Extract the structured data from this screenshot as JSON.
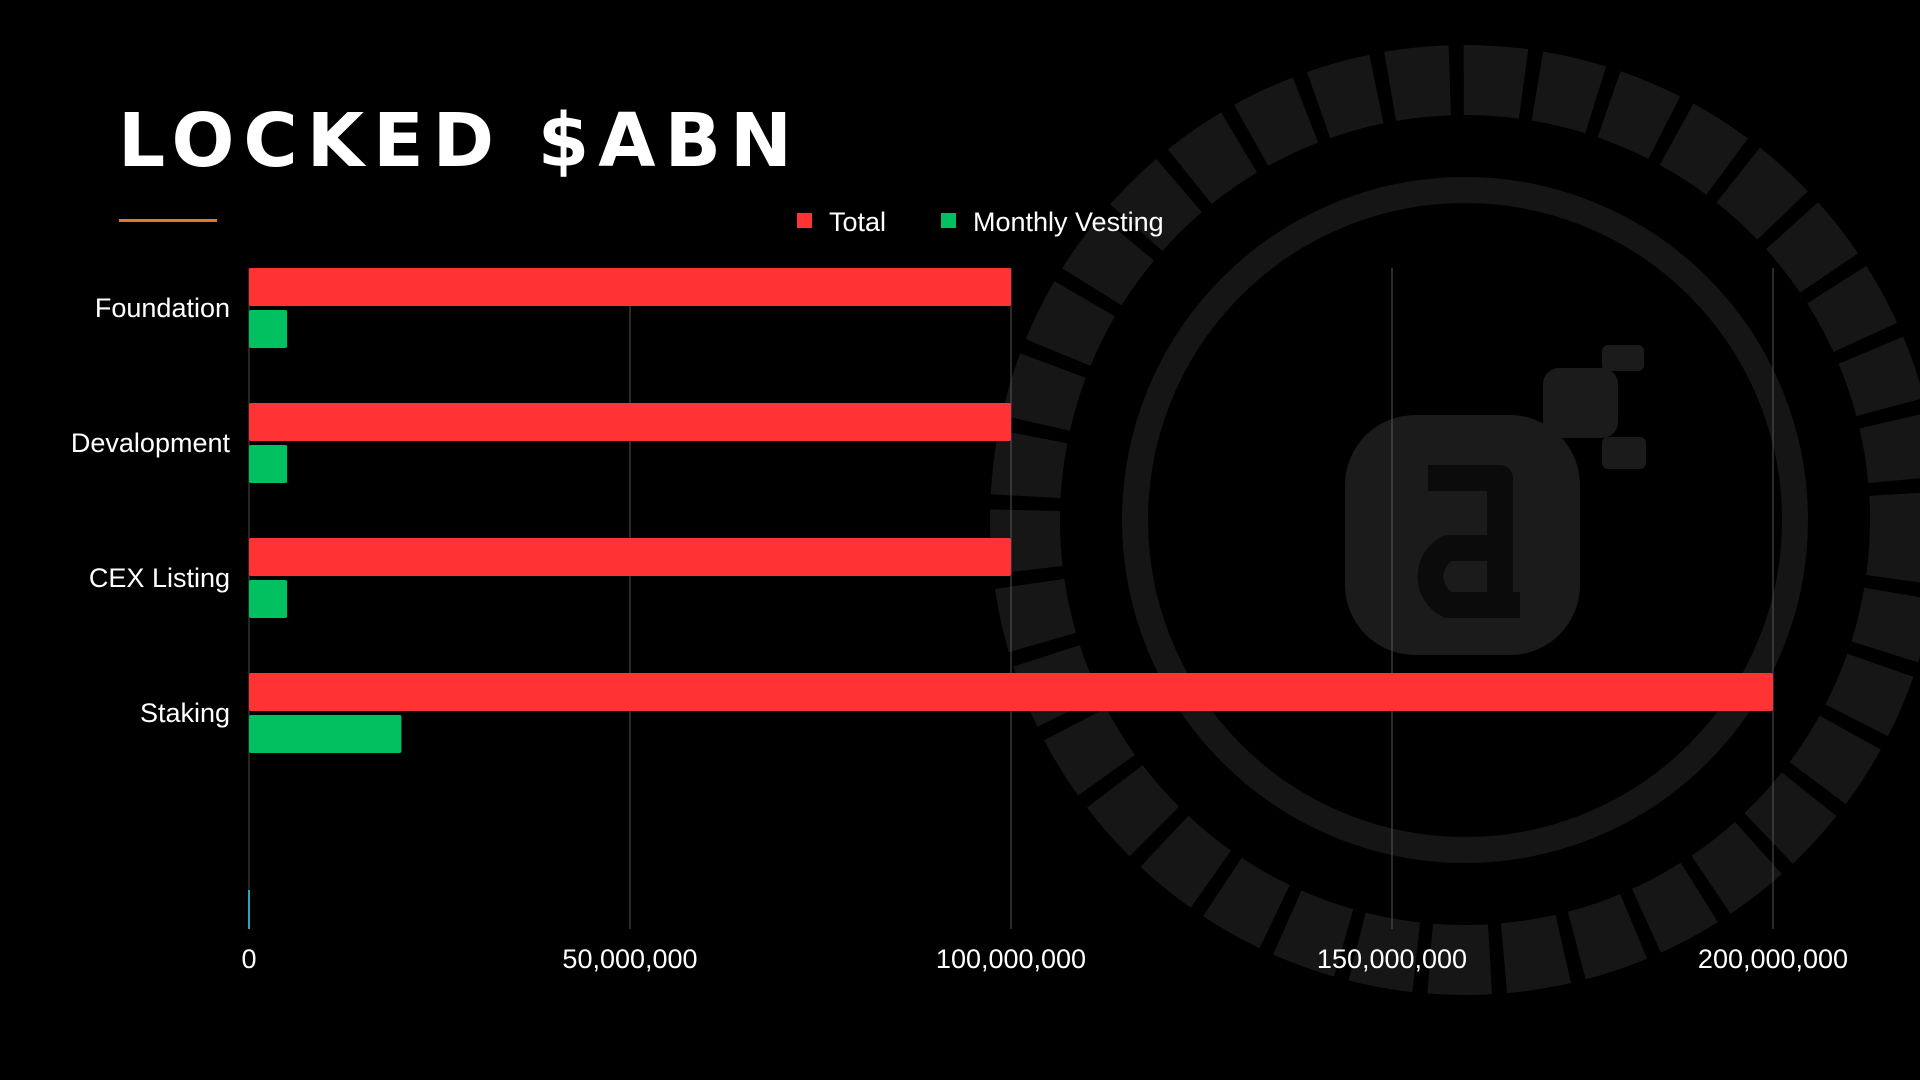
{
  "title": "LOCKED $ABN",
  "colors": {
    "background": "#000000",
    "accent_line": "#e8742c",
    "total": "#ff3333",
    "monthly": "#00c060",
    "grid": "#555555",
    "watermark": "#1b1b1b"
  },
  "watermark_icon": "abn-logo-icon",
  "chart_data": {
    "type": "bar",
    "orientation": "horizontal",
    "categories": [
      "Foundation",
      "Devalopment",
      "CEX Listing",
      "Staking"
    ],
    "series": [
      {
        "name": "Total",
        "color": "#ff3333",
        "values": [
          100000000,
          100000000,
          100000000,
          200000000
        ]
      },
      {
        "name": "Monthly Vesting",
        "color": "#00c060",
        "values": [
          5000000,
          5000000,
          5000000,
          20000000
        ]
      }
    ],
    "xlim": [
      0,
      200000000
    ],
    "xticks": [
      0,
      50000000,
      100000000,
      150000000,
      200000000
    ],
    "xtick_labels": [
      "0",
      "50,000,000",
      "100,000,000",
      "150,000,000",
      "200,000,000"
    ],
    "grid": true,
    "legend_position": "top-center"
  }
}
